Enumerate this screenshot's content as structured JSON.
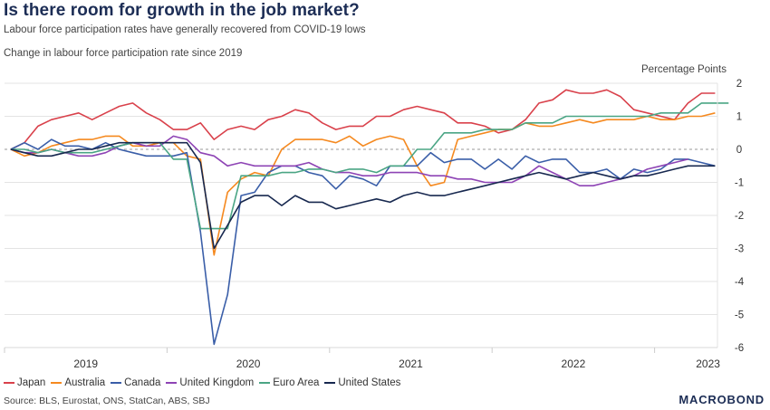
{
  "header": {
    "title": "Is there room for growth in the job market?",
    "subtitle": "Labour force participation rates have generally recovered from COVID-19 lows",
    "description": "Change in labour force participation rate since 2019"
  },
  "footer": {
    "source": "Source: BLS, Eurostat, ONS, StatCan, ABS, SBJ",
    "brand": "MACROBOND"
  },
  "chart_data": {
    "type": "line",
    "title": "Change in labour force participation rate since 2019",
    "ylabel": "Percentage Points",
    "xlabel": "",
    "ylim": [
      -6,
      2
    ],
    "yticks": [
      2,
      1,
      0,
      -1,
      -2,
      -3,
      -4,
      -5,
      -6
    ],
    "y_axis_side": "right",
    "x_start": "2019-01",
    "x_frequency": "monthly",
    "year_labels": [
      "2019",
      "2020",
      "2021",
      "2022",
      "2023"
    ],
    "grid": true,
    "zero_line": "dashed",
    "legend_position": "bottom",
    "series": [
      {
        "name": "Japan",
        "color": "#d9414b",
        "values": [
          0,
          0.2,
          0.7,
          0.9,
          1.0,
          1.1,
          0.9,
          1.1,
          1.3,
          1.4,
          1.1,
          0.9,
          0.6,
          0.6,
          0.8,
          0.3,
          0.6,
          0.7,
          0.6,
          0.9,
          1.0,
          1.2,
          1.1,
          0.8,
          0.6,
          0.7,
          0.7,
          1.0,
          1.0,
          1.2,
          1.3,
          1.2,
          1.1,
          0.8,
          0.8,
          0.7,
          0.5,
          0.6,
          0.9,
          1.4,
          1.5,
          1.8,
          1.7,
          1.7,
          1.8,
          1.6,
          1.2,
          1.1,
          1.0,
          0.9,
          1.4,
          1.7,
          1.7
        ]
      },
      {
        "name": "Australia",
        "color": "#f5891f",
        "values": [
          0,
          -0.2,
          -0.1,
          0.1,
          0.2,
          0.3,
          0.3,
          0.4,
          0.4,
          0.1,
          0.1,
          0.2,
          0.2,
          -0.2,
          -0.3,
          -3.2,
          -1.3,
          -0.9,
          -0.7,
          -0.8,
          0.0,
          0.3,
          0.3,
          0.3,
          0.2,
          0.4,
          0.1,
          0.3,
          0.4,
          0.3,
          -0.5,
          -1.1,
          -1.0,
          0.3,
          0.4,
          0.5,
          0.6,
          0.6,
          0.8,
          0.7,
          0.7,
          0.8,
          0.9,
          0.8,
          0.9,
          0.9,
          0.9,
          1.0,
          0.9,
          0.9,
          1.0,
          1.0,
          1.1
        ]
      },
      {
        "name": "Canada",
        "color": "#3a5ea8",
        "values": [
          0,
          0.2,
          0.0,
          0.3,
          0.1,
          0.1,
          0.0,
          0.2,
          0.0,
          -0.1,
          -0.2,
          -0.2,
          -0.2,
          -0.1,
          -2.5,
          -5.9,
          -4.4,
          -1.4,
          -1.3,
          -0.7,
          -0.5,
          -0.5,
          -0.7,
          -0.8,
          -1.2,
          -0.8,
          -0.9,
          -1.1,
          -0.5,
          -0.5,
          -0.5,
          -0.1,
          -0.4,
          -0.3,
          -0.3,
          -0.6,
          -0.3,
          -0.6,
          -0.2,
          -0.4,
          -0.3,
          -0.3,
          -0.7,
          -0.7,
          -0.6,
          -0.9,
          -0.6,
          -0.7,
          -0.6,
          -0.3,
          -0.3,
          -0.4,
          -0.5
        ]
      },
      {
        "name": "United Kingdom",
        "color": "#8e44b5",
        "values": [
          0,
          -0.1,
          -0.1,
          0.0,
          -0.1,
          -0.2,
          -0.2,
          -0.1,
          0.1,
          0.2,
          0.1,
          0.1,
          0.4,
          0.3,
          -0.1,
          -0.2,
          -0.5,
          -0.4,
          -0.5,
          -0.5,
          -0.5,
          -0.5,
          -0.4,
          -0.6,
          -0.7,
          -0.7,
          -0.8,
          -0.8,
          -0.7,
          -0.7,
          -0.7,
          -0.8,
          -0.8,
          -0.9,
          -0.9,
          -1.0,
          -1.0,
          -1.0,
          -0.8,
          -0.5,
          -0.7,
          -0.9,
          -1.1,
          -1.1,
          -1.0,
          -0.9,
          -0.8,
          -0.6,
          -0.5,
          -0.4,
          -0.3
        ]
      },
      {
        "name": "Euro Area",
        "color": "#4aa584",
        "values": [
          0,
          0.0,
          -0.1,
          0.0,
          -0.1,
          -0.1,
          -0.1,
          0.0,
          0.1,
          0.2,
          0.2,
          0.2,
          -0.3,
          -0.3,
          -2.4,
          -2.4,
          -2.4,
          -0.8,
          -0.8,
          -0.8,
          -0.7,
          -0.7,
          -0.6,
          -0.6,
          -0.7,
          -0.6,
          -0.6,
          -0.7,
          -0.5,
          -0.5,
          0.0,
          0.0,
          0.5,
          0.5,
          0.5,
          0.6,
          0.6,
          0.6,
          0.8,
          0.8,
          0.8,
          1.0,
          1.0,
          1.0,
          1.0,
          1.0,
          1.0,
          1.0,
          1.1,
          1.1,
          1.1,
          1.4,
          1.4,
          1.4
        ]
      },
      {
        "name": "United States",
        "color": "#17284f",
        "values": [
          0,
          -0.1,
          -0.2,
          -0.2,
          -0.1,
          0.0,
          0.0,
          0.1,
          0.2,
          0.2,
          0.2,
          0.2,
          0.2,
          0.2,
          -0.4,
          -3.0,
          -2.3,
          -1.6,
          -1.4,
          -1.4,
          -1.7,
          -1.4,
          -1.6,
          -1.6,
          -1.8,
          -1.7,
          -1.6,
          -1.5,
          -1.6,
          -1.4,
          -1.3,
          -1.4,
          -1.4,
          -1.3,
          -1.2,
          -1.1,
          -1.0,
          -0.9,
          -0.8,
          -0.7,
          -0.8,
          -0.9,
          -0.8,
          -0.7,
          -0.8,
          -0.9,
          -0.8,
          -0.8,
          -0.7,
          -0.6,
          -0.5,
          -0.5,
          -0.5
        ]
      }
    ]
  }
}
